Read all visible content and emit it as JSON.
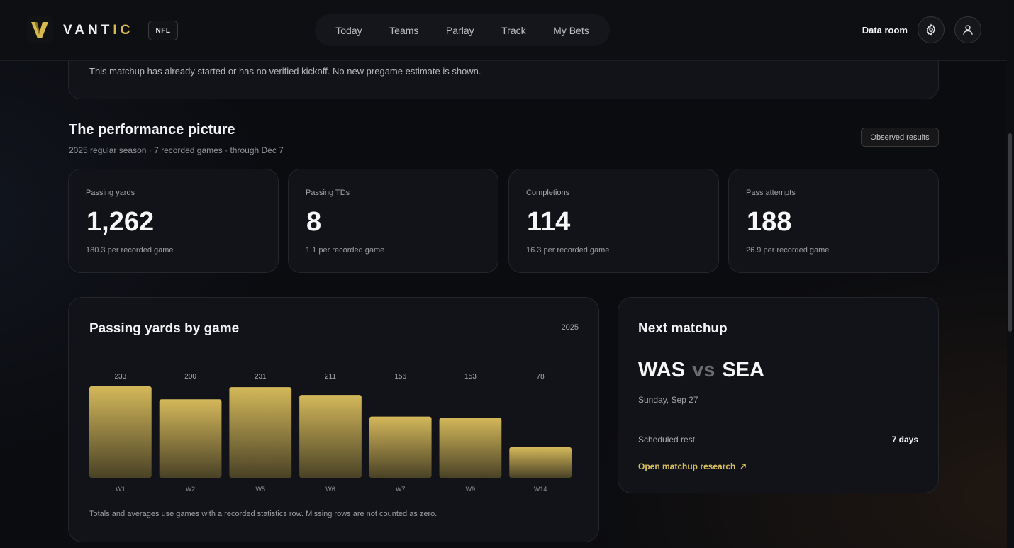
{
  "brand": {
    "name_light": "VANT",
    "name_gold": "IC",
    "league": "NFL"
  },
  "nav": {
    "items": [
      "Today",
      "Teams",
      "Parlay",
      "Track",
      "My Bets"
    ]
  },
  "header": {
    "data_room": "Data room",
    "settings_icon": "gear-icon",
    "profile_icon": "user-icon"
  },
  "notice": {
    "text": "This matchup has already started or has no verified kickoff. No new pregame estimate is shown."
  },
  "performance": {
    "title": "The performance picture",
    "subtitle": "2025 regular season · 7 recorded games · through Dec 7",
    "badge": "Observed results",
    "stats": [
      {
        "label": "Passing yards",
        "value": "1,262",
        "per": "180.3 per recorded game"
      },
      {
        "label": "Passing TDs",
        "value": "8",
        "per": "1.1 per recorded game"
      },
      {
        "label": "Completions",
        "value": "114",
        "per": "16.3 per recorded game"
      },
      {
        "label": "Pass attempts",
        "value": "188",
        "per": "26.9 per recorded game"
      }
    ]
  },
  "chart": {
    "title": "Passing yards by game",
    "year": "2025",
    "footnote": "Totals and averages use games with a recorded statistics row. Missing rows are not counted as zero."
  },
  "chart_data": {
    "type": "bar",
    "title": "Passing yards by game",
    "categories": [
      "W1",
      "W2",
      "W5",
      "W6",
      "W7",
      "W9",
      "W14"
    ],
    "values": [
      233,
      200,
      231,
      211,
      156,
      153,
      78
    ],
    "ylim": [
      0,
      233
    ],
    "grid": false,
    "bar_color_top": "#d4b85a",
    "bar_color_bottom": "#4a4226"
  },
  "matchup": {
    "title": "Next matchup",
    "home": "WAS",
    "vs": "vs",
    "away": "SEA",
    "date": "Sunday, Sep 27",
    "rest_label": "Scheduled rest",
    "rest_value": "7 days",
    "link": "Open matchup research"
  },
  "colors": {
    "accent_gold": "#d8b94e",
    "background": "#0b0c10",
    "card": "#121318"
  }
}
